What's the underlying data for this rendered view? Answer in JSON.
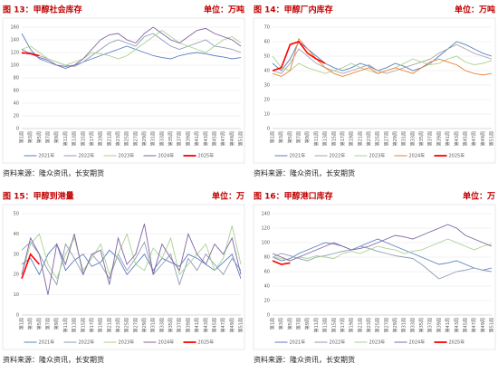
{
  "chart_data": [
    {
      "type": "line",
      "title": "图 13：甲醇社会库存",
      "unit": "单位：万吨",
      "source": "资料来源：隆众资讯，长安期货",
      "categories": [
        "第1周",
        "第3周",
        "第5周",
        "第7周",
        "第9周",
        "第11周",
        "第13周",
        "第15周",
        "第17周",
        "第19周",
        "第21周",
        "第23周",
        "第25周",
        "第27周",
        "第29周",
        "第31周",
        "第33周",
        "第35周",
        "第37周",
        "第39周",
        "第41周",
        "第43周",
        "第45周",
        "第47周",
        "第49周",
        "第51周"
      ],
      "ylim": [
        0,
        160
      ],
      "yticks": [
        0,
        20,
        40,
        60,
        80,
        100,
        120,
        140,
        160
      ],
      "series": [
        {
          "name": "2021年",
          "color": "#5b7fc1",
          "values": [
            150,
            125,
            110,
            105,
            100,
            98,
            100,
            105,
            110,
            115,
            120,
            125,
            130,
            125,
            120,
            115,
            112,
            110,
            115,
            118,
            120,
            118,
            115,
            113,
            110,
            112
          ]
        },
        {
          "name": "2022年",
          "color": "#8c9bb5",
          "values": [
            118,
            120,
            115,
            110,
            105,
            100,
            98,
            105,
            115,
            125,
            135,
            140,
            135,
            130,
            145,
            150,
            140,
            130,
            125,
            130,
            135,
            140,
            130,
            128,
            125,
            120
          ]
        },
        {
          "name": "2023年",
          "color": "#a9d18e",
          "values": [
            125,
            130,
            120,
            110,
            105,
            100,
            105,
            110,
            120,
            118,
            115,
            110,
            115,
            125,
            135,
            145,
            155,
            145,
            135,
            130,
            125,
            120,
            130,
            140,
            145,
            135
          ]
        },
        {
          "name": "2024年",
          "color": "#8064a2",
          "values": [
            125,
            118,
            112,
            108,
            100,
            95,
            100,
            110,
            125,
            140,
            148,
            150,
            140,
            135,
            150,
            160,
            150,
            140,
            135,
            145,
            155,
            158,
            150,
            145,
            140,
            130
          ]
        },
        {
          "name": "2025年",
          "color": "#ff0000",
          "values": [
            120,
            118,
            115,
            null,
            null,
            null,
            null,
            null,
            null,
            null,
            null,
            null,
            null,
            null,
            null,
            null,
            null,
            null,
            null,
            null,
            null,
            null,
            null,
            null,
            null,
            null
          ]
        }
      ]
    },
    {
      "type": "line",
      "title": "图 14：甲醇厂内库存",
      "unit": "单位：万吨",
      "source": "资料来源：隆众资讯，长安期货",
      "categories": [
        "第1周",
        "第3周",
        "第5周",
        "第7周",
        "第9周",
        "第11周",
        "第13周",
        "第15周",
        "第17周",
        "第19周",
        "第21周",
        "第23周",
        "第25周",
        "第27周",
        "第29周",
        "第31周",
        "第33周",
        "第35周",
        "第37周",
        "第39周",
        "第41周",
        "第43周",
        "第45周",
        "第47周",
        "第49周",
        "第51周"
      ],
      "ylim": [
        0,
        70
      ],
      "yticks": [
        0,
        10,
        20,
        30,
        40,
        50,
        60,
        70
      ],
      "series": [
        {
          "name": "2021年",
          "color": "#5b7fc1",
          "values": [
            45,
            40,
            48,
            60,
            55,
            50,
            45,
            42,
            40,
            42,
            45,
            43,
            40,
            42,
            45,
            43,
            40,
            42,
            45,
            50,
            55,
            60,
            58,
            55,
            52,
            50
          ]
        },
        {
          "name": "2022年",
          "color": "#a5a5a5",
          "values": [
            40,
            38,
            45,
            55,
            50,
            45,
            42,
            40,
            38,
            40,
            42,
            44,
            40,
            38,
            40,
            42,
            44,
            46,
            48,
            52,
            55,
            58,
            55,
            52,
            50,
            48
          ]
        },
        {
          "name": "2023年",
          "color": "#a9d18e",
          "values": [
            50,
            42,
            40,
            45,
            42,
            40,
            38,
            40,
            42,
            45,
            42,
            40,
            38,
            40,
            42,
            45,
            48,
            46,
            44,
            45,
            48,
            50,
            46,
            44,
            45,
            47
          ]
        },
        {
          "name": "2024年",
          "color": "#ed7d31",
          "values": [
            38,
            36,
            40,
            62,
            55,
            48,
            42,
            38,
            36,
            38,
            40,
            42,
            38,
            40,
            42,
            40,
            38,
            42,
            46,
            48,
            46,
            44,
            40,
            38,
            37,
            38
          ]
        },
        {
          "name": "2025年",
          "color": "#ff0000",
          "values": [
            40,
            42,
            58,
            60,
            52,
            48,
            45,
            null,
            null,
            null,
            null,
            null,
            null,
            null,
            null,
            null,
            null,
            null,
            null,
            null,
            null,
            null,
            null,
            null,
            null,
            null
          ]
        }
      ]
    },
    {
      "type": "line",
      "title": "图 15：甲醇到港量",
      "unit": "单位：万",
      "source": "资料来源：隆众资讯，长安期货",
      "categories": [
        "第1周",
        "第3周",
        "第5周",
        "第7周",
        "第9周",
        "第11周",
        "第13周",
        "第15周",
        "第17周",
        "第19周",
        "第21周",
        "第23周",
        "第25周",
        "第27周",
        "第29周",
        "第31周",
        "第33周",
        "第35周",
        "第37周",
        "第39周",
        "第41周",
        "第43周",
        "第45周",
        "第47周",
        "第49周",
        "第51周"
      ],
      "ylim": [
        0,
        50
      ],
      "yticks": [
        0,
        10,
        20,
        30,
        40,
        50
      ],
      "series": [
        {
          "name": "2021年",
          "color": "#5b7fc1",
          "values": [
            25,
            28,
            20,
            30,
            35,
            22,
            27,
            30,
            24,
            26,
            32,
            28,
            20,
            25,
            30,
            22,
            28,
            26,
            24,
            30,
            28,
            25,
            22,
            26,
            30,
            18
          ]
        },
        {
          "name": "2022年",
          "color": "#8c9bb5",
          "values": [
            32,
            36,
            30,
            22,
            15,
            35,
            28,
            20,
            30,
            25,
            18,
            30,
            22,
            28,
            36,
            20,
            25,
            30,
            15,
            28,
            22,
            30,
            25,
            20,
            28,
            22
          ]
        },
        {
          "name": "2023年",
          "color": "#a9d18e",
          "values": [
            20,
            35,
            40,
            25,
            18,
            30,
            38,
            22,
            28,
            35,
            20,
            30,
            40,
            25,
            22,
            33,
            28,
            38,
            20,
            25,
            30,
            35,
            22,
            28,
            44,
            25
          ]
        },
        {
          "name": "2024年",
          "color": "#8064a2",
          "values": [
            20,
            38,
            30,
            10,
            35,
            25,
            40,
            20,
            30,
            32,
            15,
            38,
            25,
            30,
            45,
            20,
            35,
            28,
            22,
            40,
            30,
            25,
            35,
            30,
            38,
            20
          ]
        },
        {
          "name": "2025年",
          "color": "#ff0000",
          "values": [
            18,
            30,
            25,
            null,
            null,
            null,
            null,
            null,
            null,
            null,
            null,
            null,
            null,
            null,
            null,
            null,
            null,
            null,
            null,
            null,
            null,
            null,
            null,
            null,
            null,
            null
          ]
        }
      ]
    },
    {
      "type": "line",
      "title": "图 16：甲醇港口库存",
      "unit": "单位：万",
      "source": "资料来源：隆众资讯，长安期货",
      "categories": [
        "第1周",
        "第3周",
        "第5周",
        "第7周",
        "第9周",
        "第11周",
        "第13周",
        "第15周",
        "第17周",
        "第19周",
        "第21周",
        "第23周",
        "第25周",
        "第27周",
        "第29周",
        "第31周",
        "第33周",
        "第35周",
        "第37周",
        "第39周",
        "第41周",
        "第43周",
        "第45周",
        "第47周",
        "第49周",
        "第51周"
      ],
      "ylim": [
        0,
        140
      ],
      "yticks": [
        0,
        20,
        40,
        60,
        80,
        100,
        120,
        140
      ],
      "series": [
        {
          "name": "2021年",
          "color": "#5b7fc1",
          "values": [
            80,
            75,
            78,
            85,
            90,
            95,
            100,
            98,
            95,
            90,
            95,
            100,
            105,
            100,
            95,
            90,
            85,
            80,
            75,
            70,
            72,
            75,
            70,
            65,
            62,
            65
          ]
        },
        {
          "name": "2022年",
          "color": "#8c9bb5",
          "values": [
            80,
            85,
            82,
            78,
            75,
            80,
            82,
            85,
            88,
            90,
            95,
            92,
            88,
            85,
            82,
            80,
            78,
            70,
            60,
            50,
            55,
            60,
            62,
            65,
            62,
            60
          ]
        },
        {
          "name": "2023年",
          "color": "#a9d18e",
          "values": [
            80,
            78,
            75,
            80,
            78,
            82,
            80,
            78,
            85,
            88,
            85,
            90,
            95,
            92,
            90,
            85,
            88,
            90,
            95,
            100,
            105,
            100,
            95,
            90,
            95,
            98
          ]
        },
        {
          "name": "2024年",
          "color": "#8064a2",
          "values": [
            85,
            80,
            75,
            80,
            85,
            90,
            95,
            100,
            95,
            90,
            92,
            95,
            100,
            105,
            110,
            108,
            105,
            110,
            115,
            120,
            125,
            120,
            110,
            105,
            100,
            95
          ]
        },
        {
          "name": "2025年",
          "color": "#ff0000",
          "values": [
            75,
            70,
            72,
            null,
            null,
            null,
            null,
            null,
            null,
            null,
            null,
            null,
            null,
            null,
            null,
            null,
            null,
            null,
            null,
            null,
            null,
            null,
            null,
            null,
            null,
            null
          ]
        }
      ]
    }
  ]
}
